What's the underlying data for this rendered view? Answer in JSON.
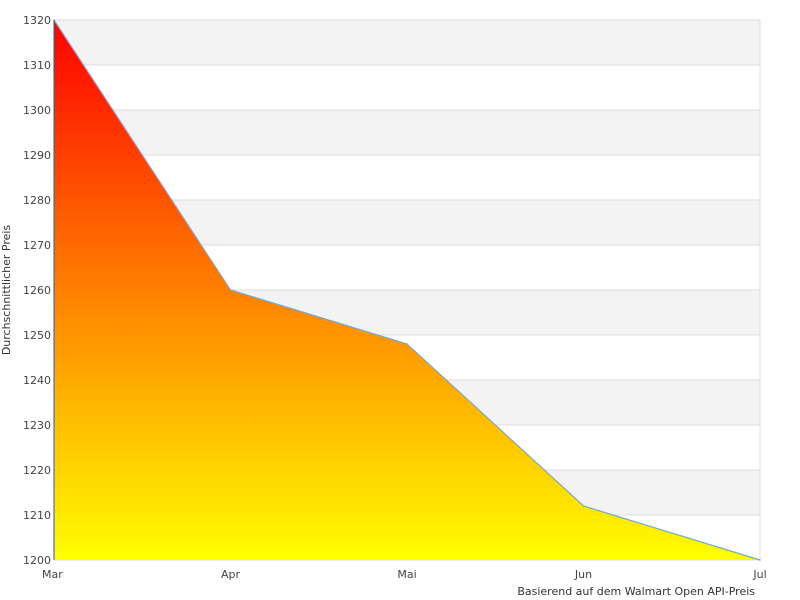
{
  "chart_data": {
    "type": "area",
    "categories": [
      "Mar",
      "Apr",
      "Mai",
      "Jun",
      "Jul"
    ],
    "values": [
      1320,
      1260,
      1248,
      1212,
      1200
    ],
    "title": "",
    "xlabel": "Basierend auf dem Walmart Open API-Preis",
    "ylabel": "Durchschnittlicher Preis",
    "ylim": [
      1200,
      1320
    ],
    "yticks": [
      1200,
      1210,
      1220,
      1230,
      1240,
      1250,
      1260,
      1270,
      1280,
      1290,
      1300,
      1310,
      1320
    ],
    "grid": true,
    "legend": "none",
    "colors": {
      "fill_top": "#ff0000",
      "fill_bottom": "#ffff00",
      "line": "#6ea8e0",
      "band": "#f3f3f3",
      "grid": "#dddddd"
    }
  }
}
